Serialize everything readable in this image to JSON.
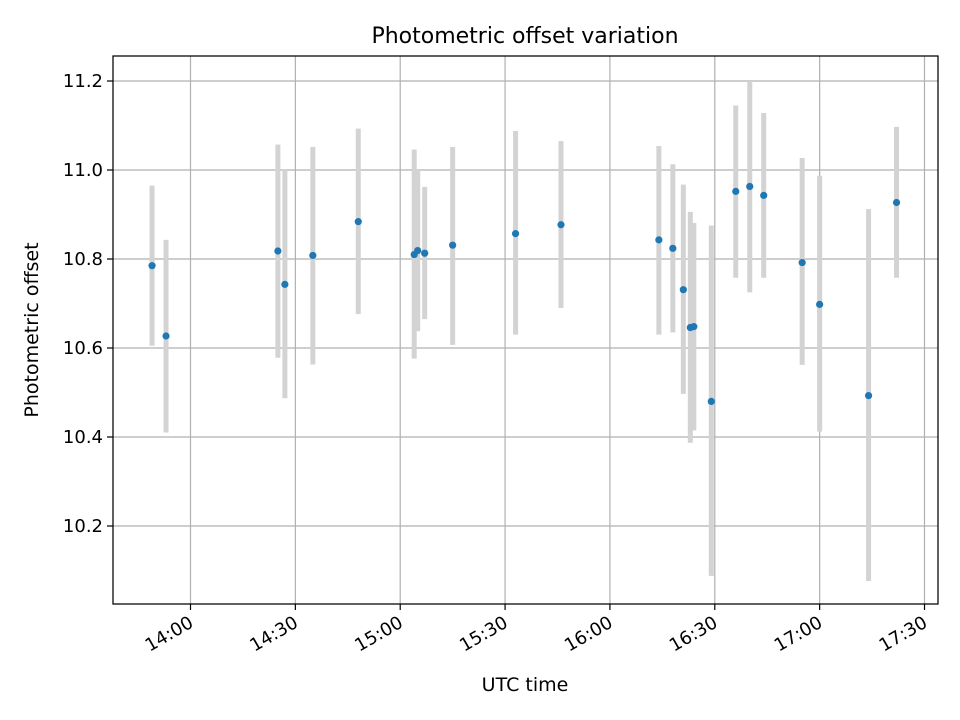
{
  "chart_data": {
    "type": "scatter",
    "title": "Photometric offset variation",
    "xlabel": "UTC time",
    "ylabel": "Photometric offset",
    "x_axis": {
      "kind": "time",
      "range": [
        "13:49",
        "17:33"
      ],
      "ticks": [
        "14:00",
        "14:30",
        "15:00",
        "15:30",
        "16:00",
        "16:30",
        "17:00",
        "17:30"
      ]
    },
    "y_axis": {
      "range": [
        10.02,
        11.26
      ],
      "ticks": [
        "10.2",
        "10.4",
        "10.6",
        "10.8",
        "11.0",
        "11.2"
      ]
    },
    "grid": true,
    "series": [
      {
        "marker_color": "#1f77b4",
        "errorbar_color": "#d3d3d3",
        "points": [
          {
            "x": "13:49",
            "y": 10.785,
            "ylo": 10.605,
            "yhi": 10.965
          },
          {
            "x": "13:53",
            "y": 10.627,
            "ylo": 10.41,
            "yhi": 10.843
          },
          {
            "x": "14:25",
            "y": 10.818,
            "ylo": 10.578,
            "yhi": 11.057
          },
          {
            "x": "14:27",
            "y": 10.743,
            "ylo": 10.487,
            "yhi": 11.0
          },
          {
            "x": "14:35",
            "y": 10.808,
            "ylo": 10.563,
            "yhi": 11.052
          },
          {
            "x": "14:48",
            "y": 10.884,
            "ylo": 10.676,
            "yhi": 11.093
          },
          {
            "x": "15:04",
            "y": 10.81,
            "ylo": 10.576,
            "yhi": 11.046
          },
          {
            "x": "15:05",
            "y": 10.819,
            "ylo": 10.638,
            "yhi": 11.0
          },
          {
            "x": "15:07",
            "y": 10.813,
            "ylo": 10.665,
            "yhi": 10.962
          },
          {
            "x": "15:15",
            "y": 10.831,
            "ylo": 10.607,
            "yhi": 11.052
          },
          {
            "x": "15:33",
            "y": 10.857,
            "ylo": 10.63,
            "yhi": 11.088
          },
          {
            "x": "15:46",
            "y": 10.877,
            "ylo": 10.69,
            "yhi": 11.065
          },
          {
            "x": "16:14",
            "y": 10.843,
            "ylo": 10.63,
            "yhi": 11.054
          },
          {
            "x": "16:18",
            "y": 10.824,
            "ylo": 10.635,
            "yhi": 11.013
          },
          {
            "x": "16:21",
            "y": 10.731,
            "ylo": 10.497,
            "yhi": 10.967
          },
          {
            "x": "16:23",
            "y": 10.646,
            "ylo": 10.387,
            "yhi": 10.906
          },
          {
            "x": "16:24",
            "y": 10.648,
            "ylo": 10.415,
            "yhi": 10.881
          },
          {
            "x": "16:29",
            "y": 10.48,
            "ylo": 10.088,
            "yhi": 10.875
          },
          {
            "x": "16:36",
            "y": 10.952,
            "ylo": 10.758,
            "yhi": 11.145
          },
          {
            "x": "16:40",
            "y": 10.963,
            "ylo": 10.725,
            "yhi": 11.2
          },
          {
            "x": "16:44",
            "y": 10.943,
            "ylo": 10.758,
            "yhi": 11.128
          },
          {
            "x": "16:55",
            "y": 10.792,
            "ylo": 10.562,
            "yhi": 11.027
          },
          {
            "x": "17:00",
            "y": 10.698,
            "ylo": 10.412,
            "yhi": 10.987
          },
          {
            "x": "17:14",
            "y": 10.493,
            "ylo": 10.076,
            "yhi": 10.912
          },
          {
            "x": "17:22",
            "y": 10.927,
            "ylo": 10.758,
            "yhi": 11.097
          }
        ]
      }
    ]
  }
}
